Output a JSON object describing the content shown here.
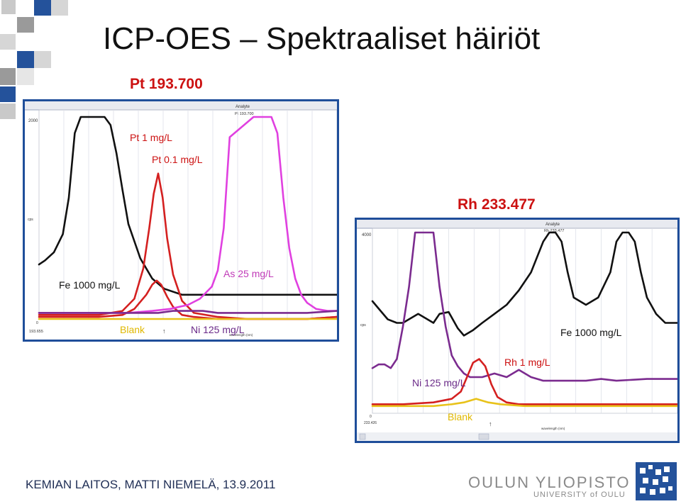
{
  "slide": {
    "title": "ICP-OES – Spektraaliset häiriöt",
    "footer": "KEMIAN LAITOS, MATTI NIEMELÄ, 13.9.2011",
    "logo_main": "OULUN YLIOPISTO",
    "logo_sub": "UNIVERSITY of OULU",
    "colors": {
      "title_text": "#111111",
      "heading_red": "#cc1111",
      "panel_border": "#1f4e9a",
      "deco_blue": "#1f4e9a",
      "deco_gray": "#9a9a9a"
    }
  },
  "chart_data": [
    {
      "type": "line",
      "heading": "Pt  193.700",
      "legend_tag": "Analyte",
      "legend_sub": "Pt 193.700",
      "y_top_tick": "2000",
      "y_zero_tick": "0",
      "y_unit": "cps",
      "x_start_tick": "193.655",
      "x_label": "wavelength (nm)",
      "series": [
        {
          "name": "Fe 1000 mg/L",
          "color": "#111111",
          "x": [
            0,
            0.02,
            0.05,
            0.08,
            0.1,
            0.12,
            0.14,
            0.16,
            0.18,
            0.2,
            0.22,
            0.24,
            0.26,
            0.28,
            0.3,
            0.34,
            0.38,
            0.42,
            0.48,
            0.55,
            0.65,
            0.75,
            0.85,
            1.0
          ],
          "y": [
            0.27,
            0.29,
            0.33,
            0.42,
            0.6,
            0.92,
            1.0,
            1.0,
            1.0,
            1.0,
            1.0,
            0.96,
            0.82,
            0.64,
            0.47,
            0.3,
            0.2,
            0.15,
            0.12,
            0.12,
            0.12,
            0.12,
            0.12,
            0.12
          ]
        },
        {
          "name": "Pt 1 mg/L",
          "color": "#d42020",
          "x": [
            0,
            0.1,
            0.2,
            0.28,
            0.32,
            0.35,
            0.37,
            0.385,
            0.4,
            0.415,
            0.43,
            0.45,
            0.48,
            0.52,
            0.6,
            0.7,
            0.8,
            0.9,
            1.0
          ],
          "y": [
            0.02,
            0.02,
            0.02,
            0.04,
            0.1,
            0.25,
            0.45,
            0.62,
            0.72,
            0.6,
            0.4,
            0.22,
            0.09,
            0.03,
            0.01,
            0.0,
            0.0,
            0.0,
            0.01
          ]
        },
        {
          "name": "Pt 0.1 mg/L",
          "color": "#d42020",
          "x": [
            0,
            0.1,
            0.2,
            0.28,
            0.32,
            0.36,
            0.38,
            0.395,
            0.41,
            0.43,
            0.45,
            0.48,
            0.52,
            0.6,
            0.7,
            0.8,
            0.9,
            1.0
          ],
          "y": [
            0.01,
            0.01,
            0.01,
            0.02,
            0.05,
            0.12,
            0.17,
            0.19,
            0.17,
            0.11,
            0.06,
            0.02,
            0.01,
            0.0,
            0.0,
            0.0,
            0.0,
            0.01
          ]
        },
        {
          "name": "As 25 mg/L",
          "color": "#e040e0",
          "x": [
            0,
            0.2,
            0.3,
            0.38,
            0.44,
            0.5,
            0.54,
            0.58,
            0.6,
            0.62,
            0.64,
            0.72,
            0.78,
            0.8,
            0.82,
            0.84,
            0.86,
            0.88,
            0.9,
            0.93,
            0.97,
            1.0
          ],
          "y": [
            0.03,
            0.03,
            0.03,
            0.04,
            0.05,
            0.07,
            0.1,
            0.16,
            0.24,
            0.45,
            0.9,
            1.0,
            1.0,
            0.92,
            0.6,
            0.35,
            0.2,
            0.12,
            0.08,
            0.05,
            0.04,
            0.04
          ]
        },
        {
          "name": "Ni 125 mg/L",
          "color": "#7b2b8f",
          "x": [
            0,
            0.2,
            0.3,
            0.4,
            0.45,
            0.5,
            0.55,
            0.6,
            0.7,
            0.8,
            0.9,
            1.0
          ],
          "y": [
            0.03,
            0.03,
            0.03,
            0.03,
            0.04,
            0.04,
            0.04,
            0.03,
            0.03,
            0.03,
            0.03,
            0.04
          ]
        },
        {
          "name": "Blank",
          "color": "#e8c21a",
          "x": [
            0,
            0.2,
            0.3,
            0.4,
            0.5,
            0.6,
            0.7,
            0.8,
            0.9,
            1.0
          ],
          "y": [
            0.0,
            0.0,
            0.0,
            0.0,
            0.0,
            0.0,
            0.0,
            0.0,
            0.0,
            0.0
          ]
        }
      ],
      "annotations": [
        "Pt  1 mg/L",
        "Pt 0.1 mg/L",
        "Fe 1000 mg/L",
        "As 25 mg/L",
        "Blank",
        "Ni 125 mg/L"
      ]
    },
    {
      "type": "line",
      "heading": "Rh  233.477",
      "legend_tag": "Analyte",
      "legend_sub": "Rh 233.477",
      "y_top_tick": "4000",
      "y_zero_tick": "0",
      "y_unit": "cps",
      "x_start_tick": "233.426",
      "x_label": "wavelength (nm)",
      "series": [
        {
          "name": "Fe 1000 mg/L",
          "color": "#111111",
          "x": [
            0,
            0.02,
            0.05,
            0.08,
            0.1,
            0.12,
            0.15,
            0.18,
            0.2,
            0.22,
            0.25,
            0.28,
            0.3,
            0.33,
            0.36,
            0.4,
            0.44,
            0.48,
            0.52,
            0.56,
            0.58,
            0.6,
            0.62,
            0.64,
            0.66,
            0.7,
            0.74,
            0.78,
            0.8,
            0.82,
            0.84,
            0.86,
            0.88,
            0.9,
            0.93,
            0.96,
            1.0
          ],
          "y": [
            0.62,
            0.58,
            0.52,
            0.5,
            0.5,
            0.52,
            0.55,
            0.52,
            0.5,
            0.55,
            0.56,
            0.47,
            0.43,
            0.46,
            0.5,
            0.55,
            0.6,
            0.68,
            0.78,
            0.95,
            1.0,
            1.0,
            0.95,
            0.78,
            0.64,
            0.6,
            0.64,
            0.78,
            0.95,
            1.0,
            1.0,
            0.95,
            0.78,
            0.64,
            0.55,
            0.5,
            0.5
          ]
        },
        {
          "name": "Ni 125 mg/L",
          "color": "#7b2b8f",
          "x": [
            0,
            0.02,
            0.04,
            0.06,
            0.08,
            0.1,
            0.12,
            0.14,
            0.16,
            0.18,
            0.2,
            0.22,
            0.24,
            0.26,
            0.28,
            0.3,
            0.32,
            0.36,
            0.4,
            0.44,
            0.48,
            0.52,
            0.56,
            0.6,
            0.65,
            0.7,
            0.75,
            0.8,
            0.9,
            1.0
          ],
          "y": [
            0.25,
            0.27,
            0.27,
            0.25,
            0.3,
            0.48,
            0.7,
            1.0,
            1.0,
            1.0,
            1.0,
            0.7,
            0.48,
            0.32,
            0.26,
            0.22,
            0.2,
            0.2,
            0.22,
            0.2,
            0.24,
            0.2,
            0.18,
            0.18,
            0.18,
            0.18,
            0.19,
            0.18,
            0.19,
            0.19
          ]
        },
        {
          "name": "Rh  1 mg/L",
          "color": "#d42020",
          "x": [
            0,
            0.1,
            0.2,
            0.26,
            0.29,
            0.31,
            0.33,
            0.35,
            0.37,
            0.39,
            0.41,
            0.44,
            0.48,
            0.55,
            0.65,
            0.75,
            0.85,
            1.0
          ],
          "y": [
            0.05,
            0.05,
            0.06,
            0.08,
            0.12,
            0.2,
            0.28,
            0.3,
            0.26,
            0.16,
            0.09,
            0.06,
            0.05,
            0.05,
            0.05,
            0.05,
            0.05,
            0.05
          ]
        },
        {
          "name": "Blank",
          "color": "#e8c21a",
          "x": [
            0,
            0.1,
            0.2,
            0.26,
            0.3,
            0.34,
            0.38,
            0.42,
            0.5,
            0.6,
            0.7,
            0.8,
            0.9,
            1.0
          ],
          "y": [
            0.04,
            0.04,
            0.04,
            0.05,
            0.06,
            0.08,
            0.06,
            0.05,
            0.04,
            0.04,
            0.04,
            0.04,
            0.04,
            0.04
          ]
        }
      ],
      "annotations": [
        "Fe 1000 mg/L",
        "Rh  1 mg/L",
        "Ni 125 mg/L",
        "Blank"
      ]
    }
  ]
}
